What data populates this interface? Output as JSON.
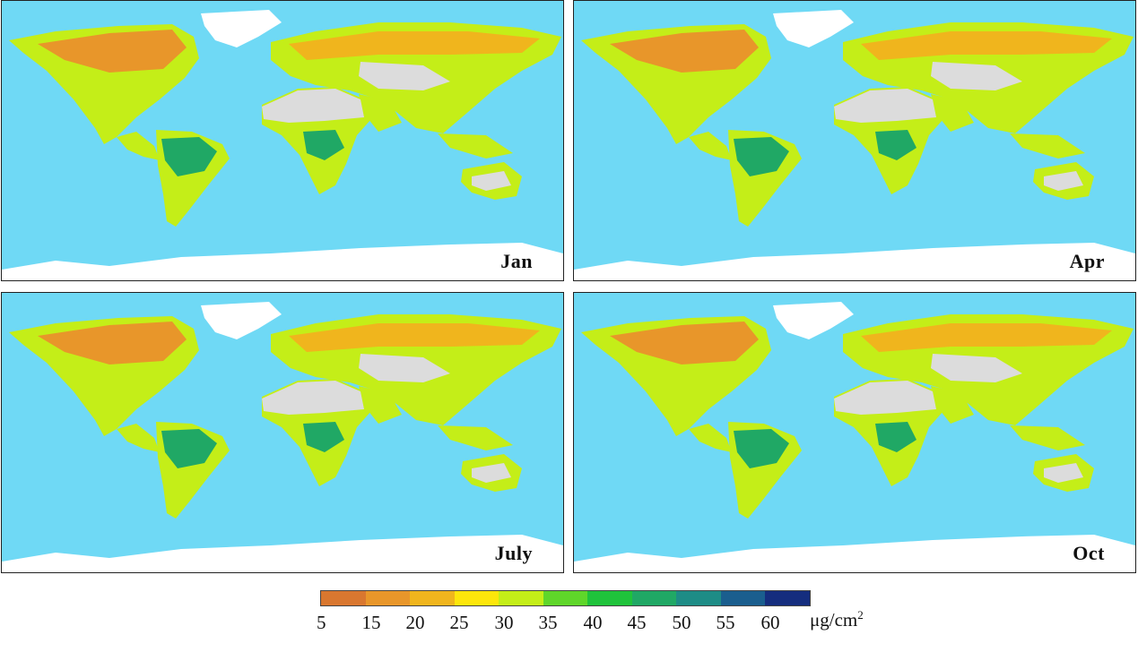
{
  "panels": [
    {
      "label": "Jan"
    },
    {
      "label": "Apr"
    },
    {
      "label": "July"
    },
    {
      "label": "Oct"
    }
  ],
  "legend": {
    "tick_labels": [
      "5",
      "15",
      "20",
      "25",
      "30",
      "35",
      "40",
      "45",
      "50",
      "55",
      "60"
    ],
    "unit_main": "μg/cm",
    "unit_exp": "2",
    "colors": [
      "#d9772f",
      "#e8962a",
      "#f0b51d",
      "#fde60b",
      "#c4ee18",
      "#5fd62a",
      "#1fc33b",
      "#20a865",
      "#1d8c86",
      "#1a5e8e",
      "#152d7e"
    ]
  },
  "colors": {
    "ocean": "#6fd9f5",
    "ice": "#ffffff",
    "desert": "#dcdcdc"
  }
}
